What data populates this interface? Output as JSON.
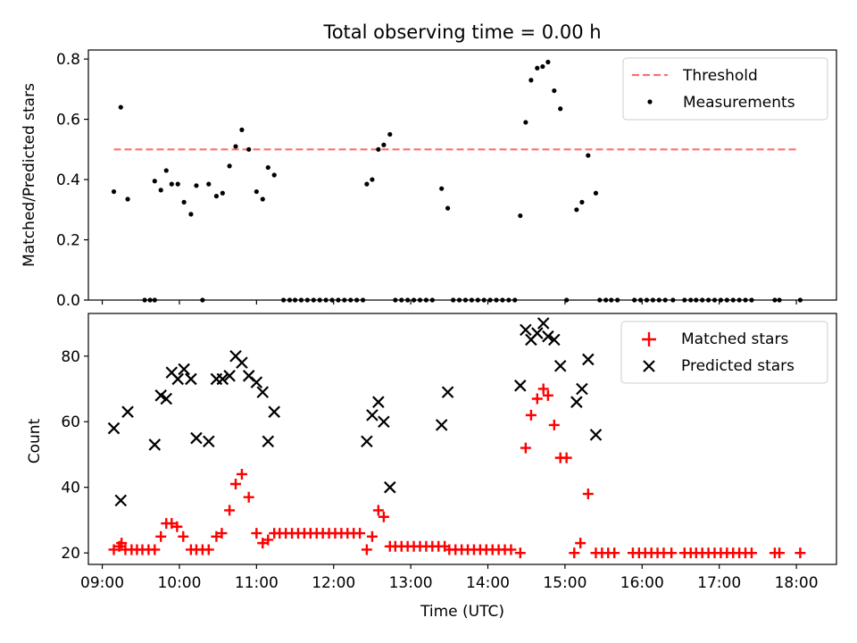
{
  "figure": {
    "title": "Total observing time = 0.00 h",
    "colors": {
      "threshold": "#ff7070",
      "measurements": "#000000",
      "matched": "#ff0000",
      "predicted": "#000000"
    }
  },
  "chart_data": [
    {
      "type": "scatter",
      "title": "Total observing time = 0.00 h",
      "xlabel": "",
      "ylabel": "Matched/Predicted stars",
      "xlim": [
        8.82,
        18.52
      ],
      "ylim": [
        0,
        0.83
      ],
      "xticks": [
        9,
        10,
        11,
        12,
        13,
        14,
        15,
        16,
        17,
        18
      ],
      "yticks": [
        0.0,
        0.2,
        0.4,
        0.6,
        0.8
      ],
      "ytick_labels": [
        "0.0",
        "0.2",
        "0.4",
        "0.6",
        "0.8"
      ],
      "legend_position": "top-right",
      "grid": false,
      "threshold": {
        "name": "Threshold",
        "value": 0.5,
        "x_range": [
          9.15,
          18.0
        ]
      },
      "series": [
        {
          "name": "Measurements",
          "marker": "dot",
          "points": [
            [
              9.15,
              0.36
            ],
            [
              9.24,
              0.64
            ],
            [
              9.33,
              0.335
            ],
            [
              9.55,
              0.0
            ],
            [
              9.62,
              0.0
            ],
            [
              9.68,
              0.0
            ],
            [
              9.68,
              0.395
            ],
            [
              9.76,
              0.365
            ],
            [
              9.83,
              0.43
            ],
            [
              9.9,
              0.385
            ],
            [
              9.98,
              0.385
            ],
            [
              10.06,
              0.325
            ],
            [
              10.15,
              0.285
            ],
            [
              10.22,
              0.38
            ],
            [
              10.3,
              0.0
            ],
            [
              10.38,
              0.385
            ],
            [
              10.48,
              0.345
            ],
            [
              10.56,
              0.355
            ],
            [
              10.65,
              0.445
            ],
            [
              10.73,
              0.51
            ],
            [
              10.81,
              0.565
            ],
            [
              10.9,
              0.5
            ],
            [
              11.0,
              0.36
            ],
            [
              11.08,
              0.335
            ],
            [
              11.15,
              0.44
            ],
            [
              11.23,
              0.415
            ],
            [
              11.35,
              0.0
            ],
            [
              11.43,
              0.0
            ],
            [
              11.5,
              0.0
            ],
            [
              11.58,
              0.0
            ],
            [
              11.66,
              0.0
            ],
            [
              11.74,
              0.0
            ],
            [
              11.82,
              0.0
            ],
            [
              11.9,
              0.0
            ],
            [
              11.98,
              0.0
            ],
            [
              12.06,
              0.0
            ],
            [
              12.14,
              0.0
            ],
            [
              12.22,
              0.0
            ],
            [
              12.3,
              0.0
            ],
            [
              12.38,
              0.0
            ],
            [
              12.43,
              0.385
            ],
            [
              12.5,
              0.4
            ],
            [
              12.58,
              0.5
            ],
            [
              12.65,
              0.515
            ],
            [
              12.73,
              0.55
            ],
            [
              12.8,
              0.0
            ],
            [
              12.88,
              0.0
            ],
            [
              12.96,
              0.0
            ],
            [
              13.04,
              0.0
            ],
            [
              13.12,
              0.0
            ],
            [
              13.2,
              0.0
            ],
            [
              13.28,
              0.0
            ],
            [
              13.4,
              0.37
            ],
            [
              13.48,
              0.305
            ],
            [
              13.55,
              0.0
            ],
            [
              13.63,
              0.0
            ],
            [
              13.71,
              0.0
            ],
            [
              13.79,
              0.0
            ],
            [
              13.87,
              0.0
            ],
            [
              13.95,
              0.0
            ],
            [
              14.03,
              0.0
            ],
            [
              14.11,
              0.0
            ],
            [
              14.19,
              0.0
            ],
            [
              14.27,
              0.0
            ],
            [
              14.35,
              0.0
            ],
            [
              14.42,
              0.28
            ],
            [
              14.49,
              0.59
            ],
            [
              14.56,
              0.73
            ],
            [
              14.64,
              0.77
            ],
            [
              14.71,
              0.775
            ],
            [
              14.78,
              0.79
            ],
            [
              14.86,
              0.695
            ],
            [
              14.94,
              0.635
            ],
            [
              15.02,
              0.0
            ],
            [
              15.15,
              0.3
            ],
            [
              15.22,
              0.325
            ],
            [
              15.3,
              0.48
            ],
            [
              15.4,
              0.355
            ],
            [
              15.45,
              0.0
            ],
            [
              15.53,
              0.0
            ],
            [
              15.6,
              0.0
            ],
            [
              15.68,
              0.0
            ],
            [
              15.9,
              0.0
            ],
            [
              15.98,
              0.0
            ],
            [
              16.06,
              0.0
            ],
            [
              16.14,
              0.0
            ],
            [
              16.22,
              0.0
            ],
            [
              16.3,
              0.0
            ],
            [
              16.4,
              0.0
            ],
            [
              16.55,
              0.0
            ],
            [
              16.63,
              0.0
            ],
            [
              16.7,
              0.0
            ],
            [
              16.78,
              0.0
            ],
            [
              16.86,
              0.0
            ],
            [
              16.94,
              0.0
            ],
            [
              17.02,
              0.0
            ],
            [
              17.1,
              0.0
            ],
            [
              17.18,
              0.0
            ],
            [
              17.26,
              0.0
            ],
            [
              17.34,
              0.0
            ],
            [
              17.42,
              0.0
            ],
            [
              17.72,
              0.0
            ],
            [
              17.78,
              0.0
            ],
            [
              18.05,
              0.0
            ]
          ]
        }
      ]
    },
    {
      "type": "scatter",
      "title": "",
      "xlabel": "Time (UTC)",
      "ylabel": "Count",
      "xlim": [
        8.82,
        18.52
      ],
      "ylim": [
        16.5,
        93
      ],
      "xticks": [
        9,
        10,
        11,
        12,
        13,
        14,
        15,
        16,
        17,
        18
      ],
      "xtick_labels": [
        "09:00",
        "10:00",
        "11:00",
        "12:00",
        "13:00",
        "14:00",
        "15:00",
        "16:00",
        "17:00",
        "18:00"
      ],
      "yticks": [
        20,
        40,
        60,
        80
      ],
      "ytick_labels": [
        "20",
        "40",
        "60",
        "80"
      ],
      "legend_position": "top-right",
      "grid": false,
      "series": [
        {
          "name": "Matched stars",
          "marker": "plus",
          "points": [
            [
              9.15,
              21
            ],
            [
              9.22,
              22
            ],
            [
              9.25,
              23
            ],
            [
              9.3,
              21
            ],
            [
              9.38,
              21
            ],
            [
              9.45,
              21
            ],
            [
              9.52,
              21
            ],
            [
              9.6,
              21
            ],
            [
              9.68,
              21
            ],
            [
              9.76,
              25
            ],
            [
              9.83,
              29
            ],
            [
              9.9,
              29
            ],
            [
              9.97,
              28
            ],
            [
              10.05,
              25
            ],
            [
              10.15,
              21
            ],
            [
              10.22,
              21
            ],
            [
              10.3,
              21
            ],
            [
              10.38,
              21
            ],
            [
              10.48,
              25
            ],
            [
              10.55,
              26
            ],
            [
              10.65,
              33
            ],
            [
              10.73,
              41
            ],
            [
              10.81,
              44
            ],
            [
              10.9,
              37
            ],
            [
              11.0,
              26
            ],
            [
              11.08,
              23
            ],
            [
              11.15,
              24
            ],
            [
              11.23,
              26
            ],
            [
              11.3,
              26
            ],
            [
              11.38,
              26
            ],
            [
              11.46,
              26
            ],
            [
              11.54,
              26
            ],
            [
              11.62,
              26
            ],
            [
              11.7,
              26
            ],
            [
              11.78,
              26
            ],
            [
              11.86,
              26
            ],
            [
              11.94,
              26
            ],
            [
              12.02,
              26
            ],
            [
              12.1,
              26
            ],
            [
              12.18,
              26
            ],
            [
              12.26,
              26
            ],
            [
              12.34,
              26
            ],
            [
              12.43,
              21
            ],
            [
              12.5,
              25
            ],
            [
              12.58,
              33
            ],
            [
              12.65,
              31
            ],
            [
              12.73,
              22
            ],
            [
              12.8,
              22
            ],
            [
              12.88,
              22
            ],
            [
              12.96,
              22
            ],
            [
              13.04,
              22
            ],
            [
              13.12,
              22
            ],
            [
              13.2,
              22
            ],
            [
              13.28,
              22
            ],
            [
              13.36,
              22
            ],
            [
              13.44,
              22
            ],
            [
              13.5,
              21
            ],
            [
              13.58,
              21
            ],
            [
              13.66,
              21
            ],
            [
              13.74,
              21
            ],
            [
              13.82,
              21
            ],
            [
              13.9,
              21
            ],
            [
              13.98,
              21
            ],
            [
              14.06,
              21
            ],
            [
              14.14,
              21
            ],
            [
              14.22,
              21
            ],
            [
              14.3,
              21
            ],
            [
              14.42,
              20
            ],
            [
              14.49,
              52
            ],
            [
              14.56,
              62
            ],
            [
              14.64,
              67
            ],
            [
              14.72,
              70
            ],
            [
              14.78,
              68
            ],
            [
              14.86,
              59
            ],
            [
              14.94,
              49
            ],
            [
              15.02,
              49
            ],
            [
              15.12,
              20
            ],
            [
              15.2,
              23
            ],
            [
              15.3,
              38
            ],
            [
              15.4,
              20
            ],
            [
              15.48,
              20
            ],
            [
              15.56,
              20
            ],
            [
              15.64,
              20
            ],
            [
              15.88,
              20
            ],
            [
              15.96,
              20
            ],
            [
              16.04,
              20
            ],
            [
              16.12,
              20
            ],
            [
              16.2,
              20
            ],
            [
              16.28,
              20
            ],
            [
              16.38,
              20
            ],
            [
              16.55,
              20
            ],
            [
              16.63,
              20
            ],
            [
              16.7,
              20
            ],
            [
              16.78,
              20
            ],
            [
              16.86,
              20
            ],
            [
              16.94,
              20
            ],
            [
              17.02,
              20
            ],
            [
              17.1,
              20
            ],
            [
              17.18,
              20
            ],
            [
              17.26,
              20
            ],
            [
              17.34,
              20
            ],
            [
              17.42,
              20
            ],
            [
              17.72,
              20
            ],
            [
              17.78,
              20
            ],
            [
              18.05,
              20
            ]
          ]
        },
        {
          "name": "Predicted stars",
          "marker": "x",
          "points": [
            [
              9.15,
              58
            ],
            [
              9.24,
              36
            ],
            [
              9.33,
              63
            ],
            [
              9.68,
              53
            ],
            [
              9.76,
              68
            ],
            [
              9.83,
              67
            ],
            [
              9.9,
              75
            ],
            [
              9.98,
              73
            ],
            [
              10.06,
              76
            ],
            [
              10.15,
              73
            ],
            [
              10.22,
              55
            ],
            [
              10.38,
              54
            ],
            [
              10.48,
              73
            ],
            [
              10.56,
              73
            ],
            [
              10.65,
              74
            ],
            [
              10.73,
              80
            ],
            [
              10.81,
              78
            ],
            [
              10.9,
              74
            ],
            [
              11.0,
              72
            ],
            [
              11.08,
              69
            ],
            [
              11.15,
              54
            ],
            [
              11.23,
              63
            ],
            [
              12.43,
              54
            ],
            [
              12.5,
              62
            ],
            [
              12.58,
              66
            ],
            [
              12.65,
              60
            ],
            [
              12.73,
              40
            ],
            [
              13.4,
              59
            ],
            [
              13.48,
              69
            ],
            [
              14.42,
              71
            ],
            [
              14.49,
              88
            ],
            [
              14.56,
              85
            ],
            [
              14.64,
              87
            ],
            [
              14.72,
              90
            ],
            [
              14.78,
              86
            ],
            [
              14.86,
              85
            ],
            [
              14.94,
              77
            ],
            [
              15.15,
              66
            ],
            [
              15.22,
              70
            ],
            [
              15.3,
              79
            ],
            [
              15.4,
              56
            ]
          ]
        }
      ]
    }
  ]
}
